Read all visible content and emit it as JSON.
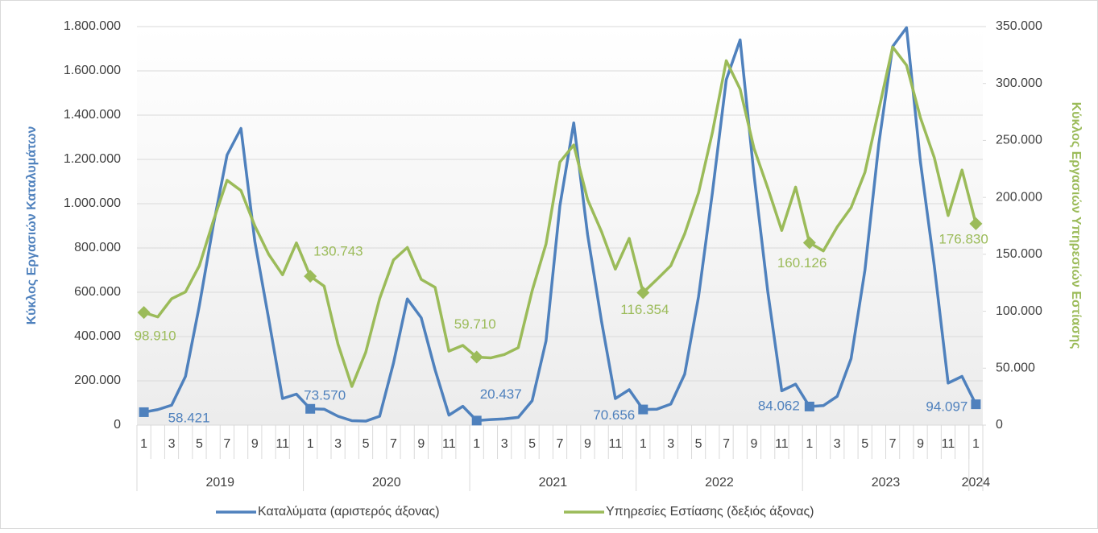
{
  "chart_data": {
    "type": "line",
    "y_label": "Κύκλος Εργασιών Καταλυμάτων",
    "y2_label": "Κύκλος Εργασιών Υπηρεσιών Εστίασης",
    "categories": [
      "1",
      null,
      "3",
      null,
      "5",
      null,
      "7",
      null,
      "9",
      null,
      "11",
      null,
      "1",
      null,
      "3",
      null,
      "5",
      null,
      "7",
      null,
      "9",
      null,
      "11",
      null,
      "1",
      null,
      "3",
      null,
      "5",
      null,
      "7",
      null,
      "9",
      null,
      "11",
      null,
      "1",
      null,
      "3",
      null,
      "5",
      null,
      "7",
      null,
      "9",
      null,
      "11",
      null,
      "1",
      null,
      "3",
      null,
      "5",
      null,
      "7",
      null,
      "9",
      null,
      "11",
      null,
      "1"
    ],
    "year_groups": [
      {
        "label": "2019",
        "months": 12
      },
      {
        "label": "2020",
        "months": 12
      },
      {
        "label": "2021",
        "months": 12
      },
      {
        "label": "2022",
        "months": 12
      },
      {
        "label": "2023",
        "months": 12
      },
      {
        "label": "2024",
        "months": 1
      }
    ],
    "series": [
      {
        "name": "Καταλύματα (αριστερός άξονας)",
        "color": "#4f81bd",
        "axis": "y",
        "marker": "square",
        "values": [
          58421,
          70000,
          90000,
          220000,
          540000,
          900000,
          1220000,
          1340000,
          830000,
          480000,
          120000,
          140000,
          73570,
          72000,
          40000,
          20000,
          18000,
          40000,
          280000,
          570000,
          485000,
          250000,
          45000,
          85000,
          20437,
          25000,
          28000,
          35000,
          110000,
          380000,
          990000,
          1365000,
          860000,
          470000,
          120000,
          160000,
          70656,
          72000,
          95000,
          230000,
          580000,
          1050000,
          1560000,
          1740000,
          1130000,
          600000,
          155000,
          185000,
          84062,
          88000,
          130000,
          300000,
          700000,
          1270000,
          1710000,
          1795000,
          1190000,
          720000,
          190000,
          220000,
          94097
        ],
        "value_labels": [
          "58.421",
          null,
          null,
          null,
          null,
          null,
          null,
          null,
          null,
          null,
          null,
          null,
          "73.570",
          null,
          null,
          null,
          null,
          null,
          null,
          null,
          null,
          null,
          null,
          null,
          "20.437",
          null,
          null,
          null,
          null,
          null,
          null,
          null,
          null,
          null,
          null,
          null,
          "70.656",
          null,
          null,
          null,
          null,
          null,
          null,
          null,
          null,
          null,
          null,
          null,
          "84.062",
          null,
          null,
          null,
          null,
          null,
          null,
          null,
          null,
          null,
          null,
          null,
          "94.097"
        ]
      },
      {
        "name": "Υπηρεσίες Εστίασης (δεξιός άξονας)",
        "color": "#9bbb59",
        "axis": "y2",
        "marker": "diamond",
        "values": [
          98910,
          95000,
          111000,
          117000,
          140000,
          179000,
          215000,
          206000,
          175000,
          150000,
          132000,
          160000,
          130743,
          122000,
          71000,
          34000,
          64000,
          111000,
          145000,
          156000,
          128000,
          121000,
          65000,
          70000,
          59710,
          59000,
          62000,
          68000,
          118000,
          159000,
          231000,
          246000,
          198000,
          170000,
          137000,
          164000,
          116354,
          128000,
          140000,
          168000,
          204000,
          257000,
          320000,
          295000,
          243000,
          208000,
          171000,
          209000,
          160126,
          153000,
          174000,
          191000,
          222000,
          277000,
          332000,
          316000,
          270000,
          235000,
          184000,
          224000,
          176830
        ],
        "value_labels": [
          "98.910",
          null,
          null,
          null,
          null,
          null,
          null,
          null,
          null,
          null,
          null,
          null,
          "130.743",
          null,
          null,
          null,
          null,
          null,
          null,
          null,
          null,
          null,
          null,
          null,
          "59.710",
          null,
          null,
          null,
          null,
          null,
          null,
          null,
          null,
          null,
          null,
          null,
          "116.354",
          null,
          null,
          null,
          null,
          null,
          null,
          null,
          null,
          null,
          null,
          null,
          "160.126",
          null,
          null,
          null,
          null,
          null,
          null,
          null,
          null,
          null,
          null,
          null,
          "176.830"
        ]
      }
    ],
    "ylim": [
      0,
      1800000
    ],
    "yticks": [
      0,
      {
        "value": 200000,
        "label": "200.000"
      },
      {
        "value": 400000,
        "label": "400.000"
      },
      {
        "value": 600000,
        "label": "600.000"
      },
      {
        "value": 800000,
        "label": "800.000"
      },
      {
        "value": 1000000,
        "label": "1.000.000"
      },
      {
        "value": 1200000,
        "label": "1.200.000"
      },
      {
        "value": 1400000,
        "label": "1.400.000"
      },
      {
        "value": 1600000,
        "label": "1.600.000"
      },
      {
        "value": 1800000,
        "label": "1.800.000"
      }
    ],
    "y2lim": [
      0,
      350000
    ],
    "y2ticks": [
      0,
      {
        "value": 50000,
        "label": "50.000"
      },
      {
        "value": 100000,
        "label": "100.000"
      },
      {
        "value": 150000,
        "label": "150.000"
      },
      {
        "value": 200000,
        "label": "200.000"
      },
      {
        "value": 250000,
        "label": "250.000"
      },
      {
        "value": 300000,
        "label": "300.000"
      },
      {
        "value": 350000,
        "label": "350.000"
      }
    ],
    "grid": true,
    "legend": "bottom"
  }
}
